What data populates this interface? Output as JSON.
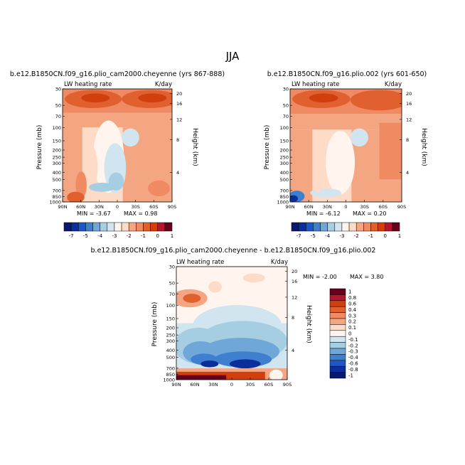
{
  "page": {
    "title": "JJA"
  },
  "colors": {
    "warm": [
      "#fddbc7",
      "#f4a582",
      "#ef8a62",
      "#e0602f",
      "#d0400f",
      "#b2182b",
      "#67001f"
    ],
    "cool": [
      "#d1e5f0",
      "#a6cee3",
      "#6fa7d9",
      "#3f7fcf",
      "#1f55c4",
      "#0b2e9a",
      "#051a6e"
    ],
    "neutral": "#fff5ee"
  },
  "chart_data": [
    {
      "type": "heatmap",
      "title": "b.e12.B1850CN.f09_g16.plio_cam2000.cheyenne (yrs 867-888)",
      "left_label": "LW heating rate",
      "right_label": "K/day",
      "ylabel": "Pressure (mb)",
      "ylabel_right": "Height (km)",
      "x_ticks": [
        "90N",
        "60N",
        "30N",
        "0",
        "30S",
        "60S",
        "90S"
      ],
      "y_ticks": [
        "30",
        "50",
        "70",
        "100",
        "150",
        "200",
        "250",
        "300",
        "400",
        "500",
        "700",
        "850",
        "1000"
      ],
      "height_ticks": [
        "20",
        "16",
        "12",
        "8",
        "4"
      ],
      "min_text": "MIN = -3.67",
      "max_text": "MAX = 0.98",
      "colorbar_labels": [
        "-7",
        "-5",
        "-4",
        "-3",
        "-2",
        "-1",
        "0",
        "1"
      ]
    },
    {
      "type": "heatmap",
      "title": "b.e12.B1850CN.f09_g16.plio.002 (yrs 601-650)",
      "left_label": "LW heating rate",
      "right_label": "K/day",
      "ylabel": "Pressure (mb)",
      "ylabel_right": "Height (km)",
      "x_ticks": [
        "90N",
        "60N",
        "30N",
        "0",
        "30S",
        "60S",
        "90S"
      ],
      "y_ticks": [
        "30",
        "50",
        "70",
        "100",
        "150",
        "200",
        "250",
        "300",
        "400",
        "500",
        "700",
        "850",
        "1000"
      ],
      "height_ticks": [
        "20",
        "16",
        "12",
        "8",
        "4"
      ],
      "min_text": "MIN = -6.12",
      "max_text": "MAX = 0.20",
      "colorbar_labels": [
        "-7",
        "-5",
        "-4",
        "-3",
        "-2",
        "-1",
        "0",
        "1"
      ]
    },
    {
      "type": "heatmap",
      "title": "b.e12.B1850CN.f09_g16.plio_cam2000.cheyenne - b.e12.B1850CN.f09_g16.plio.002",
      "left_label": "LW heating rate",
      "right_label": "K/day",
      "ylabel": "Pressure (mb)",
      "ylabel_right": "Height (km)",
      "x_ticks": [
        "90N",
        "60N",
        "30N",
        "0",
        "30S",
        "60S",
        "90S"
      ],
      "y_ticks": [
        "30",
        "50",
        "70",
        "100",
        "150",
        "200",
        "250",
        "300",
        "400",
        "500",
        "700",
        "850",
        "1000"
      ],
      "height_ticks": [
        "20",
        "16",
        "12",
        "8",
        "4"
      ],
      "min_text": "MIN = -2.00",
      "max_text": "MAX = 3.80",
      "colorbar_labels": [
        "1",
        "0.8",
        "0.6",
        "0.4",
        "0.3",
        "0.2",
        "0.1",
        "0",
        "-0.1",
        "-0.2",
        "-0.3",
        "-0.4",
        "-0.6",
        "-0.8",
        "-1"
      ]
    }
  ]
}
